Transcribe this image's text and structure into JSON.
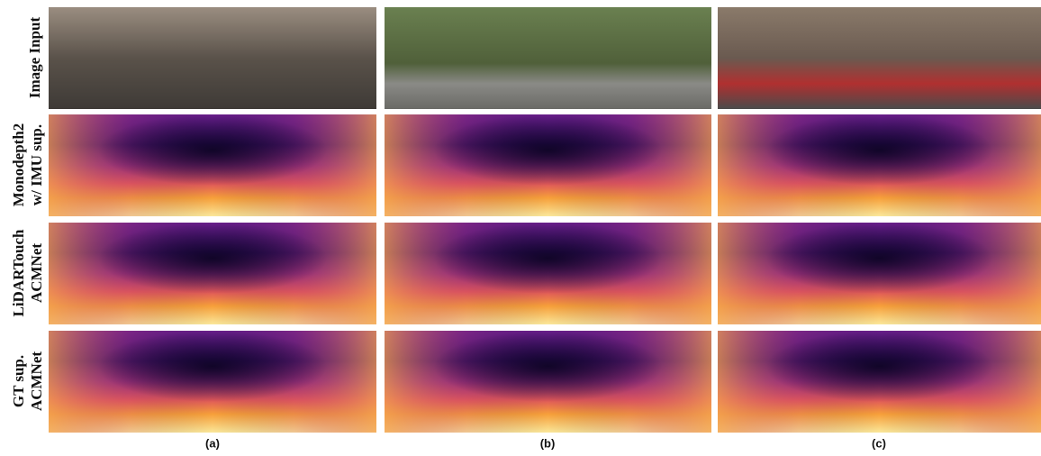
{
  "rows": [
    {
      "label": [
        "Image Input"
      ]
    },
    {
      "label": [
        "Monodepth2",
        "w/ IMU sup."
      ]
    },
    {
      "label": [
        "LiDARTouch",
        "ACMNet"
      ]
    },
    {
      "label": [
        "GT sup.",
        "ACMNet"
      ]
    }
  ],
  "columns": [
    "(a)",
    "(b)",
    "(c)"
  ]
}
